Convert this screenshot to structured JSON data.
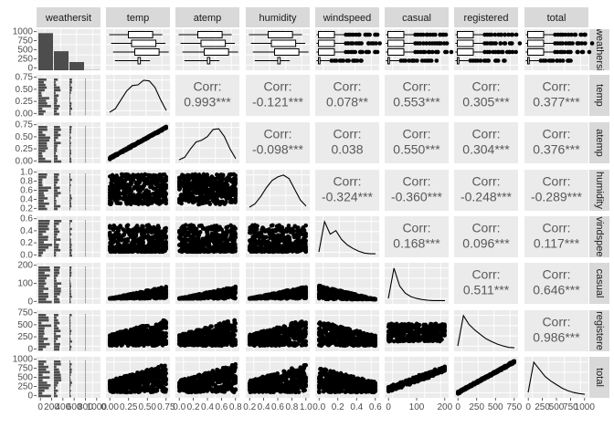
{
  "chart_data": {
    "type": "pairs",
    "variables": [
      "weathersit",
      "temp",
      "atemp",
      "humidity",
      "windspeed",
      "casual",
      "registered",
      "total"
    ],
    "column_strip_labels": [
      "weathersit",
      "temp",
      "atemp",
      "humidity",
      "windspeed",
      "casual",
      "registered",
      "total"
    ],
    "row_strip_labels": [
      "weathersi",
      "temp",
      "atemp",
      "humidity",
      "vindspee",
      "casual",
      "registere",
      "total"
    ],
    "corr_label": "Corr:",
    "correlations": [
      {
        "row": 1,
        "col": 2,
        "value": "0.993***"
      },
      {
        "row": 1,
        "col": 3,
        "value": "-0.121***"
      },
      {
        "row": 1,
        "col": 4,
        "value": "0.078**"
      },
      {
        "row": 1,
        "col": 5,
        "value": "0.553***"
      },
      {
        "row": 1,
        "col": 6,
        "value": "0.305***"
      },
      {
        "row": 1,
        "col": 7,
        "value": "0.377***"
      },
      {
        "row": 2,
        "col": 3,
        "value": "-0.098***"
      },
      {
        "row": 2,
        "col": 4,
        "value": "0.038"
      },
      {
        "row": 2,
        "col": 5,
        "value": "0.550***"
      },
      {
        "row": 2,
        "col": 6,
        "value": "0.304***"
      },
      {
        "row": 2,
        "col": 7,
        "value": "0.376***"
      },
      {
        "row": 3,
        "col": 4,
        "value": "-0.324***"
      },
      {
        "row": 3,
        "col": 5,
        "value": "-0.360***"
      },
      {
        "row": 3,
        "col": 6,
        "value": "-0.248***"
      },
      {
        "row": 3,
        "col": 7,
        "value": "-0.289***"
      },
      {
        "row": 4,
        "col": 5,
        "value": "0.168***"
      },
      {
        "row": 4,
        "col": 6,
        "value": "0.096***"
      },
      {
        "row": 4,
        "col": 7,
        "value": "0.117***"
      },
      {
        "row": 5,
        "col": 6,
        "value": "0.511***"
      },
      {
        "row": 5,
        "col": 7,
        "value": "0.646***"
      },
      {
        "row": 6,
        "col": 7,
        "value": "0.986***"
      }
    ],
    "weathersit_counts": [
      1130,
      580,
      250,
      5
    ],
    "y_ticks": [
      [
        "0",
        "250",
        "500",
        "750",
        "1000"
      ],
      [
        "0.00",
        "0.25",
        "0.50",
        "0.75"
      ],
      [
        "0.00",
        "0.25",
        "0.50",
        "0.75"
      ],
      [
        "0.2",
        "0.4",
        "0.6",
        "0.8",
        "1.0"
      ],
      [
        "0.0",
        "0.2",
        "0.4",
        "0.6"
      ],
      [
        "0",
        "100",
        "200"
      ],
      [
        "0",
        "250",
        "500",
        "750"
      ],
      [
        "0",
        "250",
        "500",
        "750",
        "1000"
      ]
    ],
    "x_ticks": [
      [
        "0",
        "200",
        "400",
        "600",
        "800",
        "1000"
      ],
      [
        "0.00",
        "0.25",
        "0.50",
        "0.75"
      ],
      [
        "0.0",
        "0.2",
        "0.4",
        "0.6",
        "0.8"
      ],
      [
        "0.2",
        "0.4",
        "0.6",
        "0.8",
        "1.0"
      ],
      [
        "0.0",
        "0.2",
        "0.4",
        "0.6"
      ],
      [
        "0",
        "100",
        "200"
      ],
      [
        "0",
        "250",
        "500",
        "750"
      ],
      [
        "0",
        "250",
        "500",
        "750",
        "1000"
      ]
    ],
    "colors": {
      "panel_bg": "#ebebeb",
      "strip_bg": "#d9d9d9",
      "grid": "#ffffff",
      "ink": "#000000",
      "bar": "#4d4d4d",
      "corr_text": "#595959"
    }
  }
}
